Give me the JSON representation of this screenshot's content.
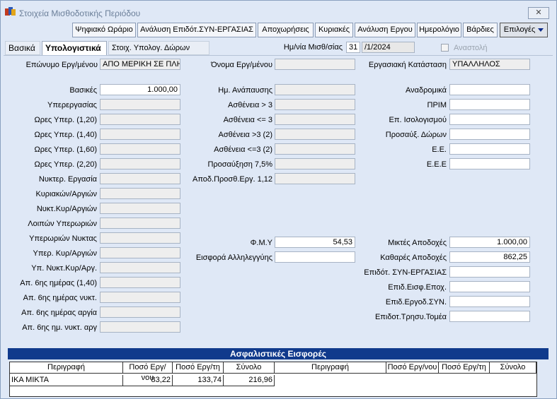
{
  "window": {
    "title": "Στοιχεία Μισθοδοτικής Περιόδου",
    "close_label": "✕"
  },
  "toolbar": {
    "buttons": [
      "Ψηφιακό Ωράριο",
      "Ανάλυση Επιδότ.ΣΥΝ-ΕΡΓΑΣΙΑΣ",
      "Αποχωρήσεις",
      "Κυριακές",
      "Ανάλυση Εργου",
      "Ημερολόγιο",
      "Βάρδιες"
    ],
    "options_label": "Επιλογές"
  },
  "tabs": [
    "Βασικά",
    "Υπολογιστικά",
    "Στοιχ. Υπολογ. Δώρων"
  ],
  "period": {
    "label": "Ημ/νία Μισθ/σίας",
    "day": "31",
    "month_year": "/1/2024",
    "suspension_label": "Αναστολή"
  },
  "header": {
    "surname_label": "Επώνυμο Εργ/μένου",
    "surname_value": "ΑΠΟ ΜΕΡΙΚΗ ΣΕ ΠΛΗΡΗ",
    "name_label": "Όνομα Εργ/μένου",
    "name_value": "",
    "status_label": "Εργασιακή Κατάσταση",
    "status_value": "ΥΠΑΛΛΗΛΟΣ"
  },
  "col1": [
    {
      "label": "Βασικές",
      "value": "1.000,00"
    },
    {
      "label": "Υπερεργασίας",
      "value": ""
    },
    {
      "label": "Ωρες Υπερ. (1,20)",
      "value": ""
    },
    {
      "label": "Ωρες Υπερ. (1,40)",
      "value": ""
    },
    {
      "label": "Ωρες Υπερ. (1,60)",
      "value": ""
    },
    {
      "label": "Ωρες Υπερ. (2,20)",
      "value": ""
    },
    {
      "label": "Νυκτερ. Εργασία",
      "value": ""
    },
    {
      "label": "Κυριακών/Αργιών",
      "value": ""
    },
    {
      "label": "Νυκτ.Κυρ/Αργιών",
      "value": ""
    },
    {
      "label": "Λοιπών Υπερωριών",
      "value": ""
    },
    {
      "label": "Υπερωριών Νυκτας",
      "value": ""
    },
    {
      "label": "Υπερ. Κυρ/Αργιών",
      "value": ""
    },
    {
      "label": "Υπ. Νυκτ.Κυρ/Αργ.",
      "value": ""
    },
    {
      "label": "Απ. 6ης ημέρας (1,40)",
      "value": ""
    },
    {
      "label": "Απ. 6ης ημέρας νυκτ.",
      "value": ""
    },
    {
      "label": "Απ. 6ης ημέρας αργία",
      "value": ""
    },
    {
      "label": "Απ. 6ης ημ. νυκτ. αργ",
      "value": ""
    }
  ],
  "col2": [
    {
      "label": "Ημ. Ανάπαυσης",
      "value": ""
    },
    {
      "label": "Ασθένεια > 3",
      "value": ""
    },
    {
      "label": "Ασθένεια <= 3",
      "value": ""
    },
    {
      "label": "Ασθένεια >3 (2)",
      "value": ""
    },
    {
      "label": "Ασθένεια <=3 (2)",
      "value": ""
    },
    {
      "label": "Προσαύξηση 7,5%",
      "value": ""
    },
    {
      "label": "Αποδ.Προσθ.Εργ. 1,12",
      "value": ""
    }
  ],
  "col2b": [
    {
      "label": "Φ.Μ.Υ",
      "value": "54,53"
    },
    {
      "label": "Εισφορά Αλληλεγγύης",
      "value": ""
    }
  ],
  "col3": [
    {
      "label": "Αναδρομικά",
      "value": ""
    },
    {
      "label": "ΠΡΙΜ",
      "value": ""
    },
    {
      "label": "Επ. Ισολογισμού",
      "value": ""
    },
    {
      "label": "Προσαύξ. Δώρων",
      "value": ""
    },
    {
      "label": "Ε.Ε.",
      "value": ""
    },
    {
      "label": "Ε.Ε.Ε",
      "value": ""
    }
  ],
  "col3b": [
    {
      "label": "Μικτές Αποδοχές",
      "value": "1.000,00"
    },
    {
      "label": "Καθαρές Αποδοχές",
      "value": "862,25"
    },
    {
      "label": "Επιδότ. ΣΥΝ-ΕΡΓΑΣΙΑΣ",
      "value": ""
    },
    {
      "label": "Επιδ.Εισφ.Εποχ.",
      "value": ""
    },
    {
      "label": "Επιδ.Εργοδ.ΣΥΝ.",
      "value": ""
    },
    {
      "label": "Επιδοτ.Τρησυ.Τομέα",
      "value": ""
    }
  ],
  "contributions": {
    "title": "Ασφαλιστικές Εισφορές",
    "headers": [
      "Περιγραφή",
      "Ποσό Εργ/νου",
      "Ποσό Εργ/τη",
      "Σύνολο",
      "Περιγραφή",
      "Ποσό Εργ/νου",
      "Ποσό Εργ/τη",
      "Σύνολο"
    ],
    "rows": [
      {
        "description": "ΙΚΑ ΜΙΚΤΑ",
        "employee": "83,22",
        "employer": "133,74",
        "total": "216,96"
      }
    ]
  }
}
